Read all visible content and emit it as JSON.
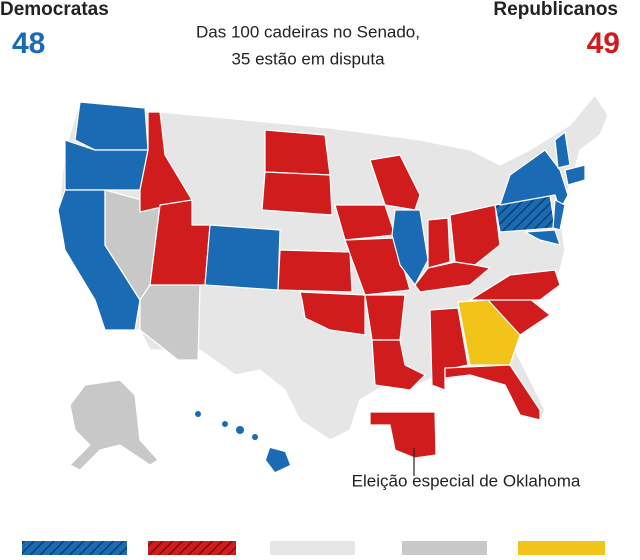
{
  "header": {
    "left": {
      "label": "Democratas",
      "seats": 48
    },
    "right": {
      "label": "Republicanos",
      "seats": 49
    },
    "subtitle": [
      "Das 100 cadeiras no Senado,",
      "35 estão em disputa"
    ]
  },
  "annotation": "Eleição especial de Oklahoma"
}
